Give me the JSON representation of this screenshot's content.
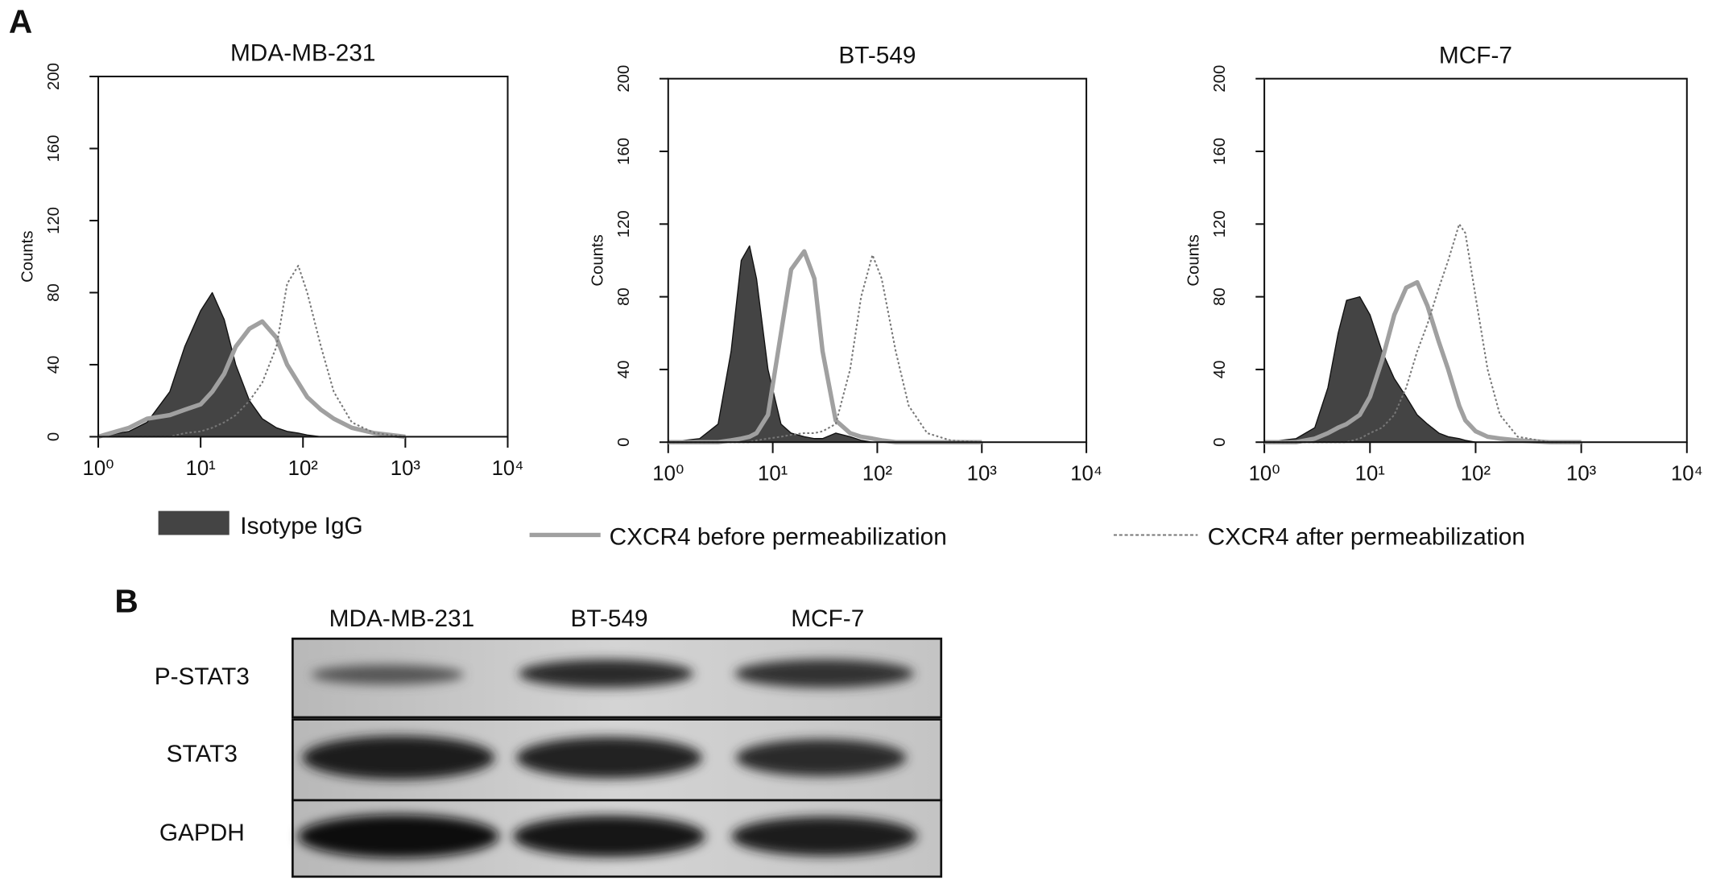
{
  "panels": [
    "A",
    "B"
  ],
  "chart_data": [
    {
      "type": "line",
      "title": "MDA-MB-231",
      "y_label": "Counts",
      "x_log": true,
      "x": [
        1,
        2,
        3,
        5,
        7,
        10,
        13,
        17,
        22,
        30,
        40,
        55,
        70,
        90,
        110,
        150,
        200,
        300,
        500,
        1000
      ],
      "xlim": [
        1,
        10000
      ],
      "xticks": [
        {
          "value": 1,
          "label": "10⁰"
        },
        {
          "value": 10,
          "label": "10¹"
        },
        {
          "value": 100,
          "label": "10²"
        },
        {
          "value": 1000,
          "label": "10³"
        },
        {
          "value": 10000,
          "label": "10⁴"
        }
      ],
      "ylim": [
        0,
        200
      ],
      "yticks": [
        0,
        40,
        80,
        120,
        160,
        200
      ],
      "series": [
        {
          "color": "#444444",
          "fill": true,
          "values": [
            0,
            3,
            8,
            25,
            50,
            70,
            80,
            65,
            40,
            20,
            10,
            5,
            3,
            2,
            1,
            0,
            0,
            0,
            0,
            0
          ]
        },
        {
          "color": "#a0a0a0",
          "width": 4,
          "values": [
            0,
            5,
            10,
            12,
            15,
            18,
            25,
            35,
            50,
            60,
            64,
            55,
            40,
            30,
            22,
            15,
            10,
            5,
            2,
            0
          ]
        },
        {
          "color": "#777777",
          "width": 1.5,
          "dash": "2 2",
          "values": [
            0,
            0,
            0,
            0,
            2,
            3,
            5,
            8,
            12,
            20,
            30,
            50,
            85,
            95,
            80,
            50,
            25,
            8,
            2,
            0
          ]
        }
      ]
    },
    {
      "type": "line",
      "title": "BT-549",
      "y_label": "Counts",
      "x_log": true,
      "x": [
        1,
        2,
        3,
        4,
        5,
        6,
        7,
        9,
        12,
        15,
        20,
        25,
        30,
        40,
        55,
        70,
        90,
        110,
        150,
        200,
        300,
        500,
        1000
      ],
      "xlim": [
        1,
        10000
      ],
      "xticks": [
        {
          "value": 1,
          "label": "10⁰"
        },
        {
          "value": 10,
          "label": "10¹"
        },
        {
          "value": 100,
          "label": "10²"
        },
        {
          "value": 1000,
          "label": "10³"
        },
        {
          "value": 10000,
          "label": "10⁴"
        }
      ],
      "ylim": [
        0,
        200
      ],
      "yticks": [
        0,
        40,
        80,
        120,
        160,
        200
      ],
      "series": [
        {
          "color": "#444444",
          "fill": true,
          "values": [
            0,
            2,
            10,
            50,
            100,
            108,
            90,
            40,
            10,
            5,
            3,
            2,
            2,
            5,
            3,
            1,
            0,
            0,
            0,
            0,
            0,
            0,
            0
          ]
        },
        {
          "color": "#a0a0a0",
          "width": 4,
          "values": [
            0,
            0,
            0,
            1,
            2,
            3,
            5,
            15,
            60,
            95,
            105,
            90,
            50,
            12,
            5,
            3,
            2,
            1,
            0,
            0,
            0,
            0,
            0
          ]
        },
        {
          "color": "#777777",
          "width": 1.5,
          "dash": "2 2",
          "values": [
            0,
            0,
            0,
            0,
            0,
            0,
            1,
            2,
            3,
            4,
            5,
            5,
            6,
            10,
            40,
            80,
            103,
            90,
            50,
            20,
            5,
            1,
            0
          ]
        }
      ]
    },
    {
      "type": "line",
      "title": "MCF-7",
      "y_label": "Counts",
      "x_log": true,
      "x": [
        1,
        2,
        3,
        4,
        5,
        6,
        8,
        10,
        13,
        17,
        22,
        28,
        35,
        45,
        55,
        70,
        80,
        100,
        130,
        170,
        250,
        500,
        1000
      ],
      "xlim": [
        1,
        10000
      ],
      "xticks": [
        {
          "value": 1,
          "label": "10⁰"
        },
        {
          "value": 10,
          "label": "10¹"
        },
        {
          "value": 100,
          "label": "10²"
        },
        {
          "value": 1000,
          "label": "10³"
        },
        {
          "value": 10000,
          "label": "10⁴"
        }
      ],
      "ylim": [
        0,
        200
      ],
      "yticks": [
        0,
        40,
        80,
        120,
        160,
        200
      ],
      "series": [
        {
          "color": "#444444",
          "fill": true,
          "values": [
            0,
            2,
            8,
            30,
            60,
            78,
            80,
            70,
            50,
            35,
            25,
            15,
            10,
            5,
            3,
            2,
            1,
            0,
            0,
            0,
            0,
            0,
            0
          ]
        },
        {
          "color": "#a0a0a0",
          "width": 4,
          "values": [
            0,
            0,
            2,
            5,
            8,
            10,
            15,
            25,
            45,
            70,
            85,
            88,
            75,
            55,
            40,
            20,
            12,
            6,
            3,
            2,
            1,
            0,
            0
          ]
        },
        {
          "color": "#777777",
          "width": 1.5,
          "dash": "2 2",
          "values": [
            0,
            0,
            0,
            0,
            0,
            0,
            2,
            5,
            8,
            15,
            30,
            50,
            65,
            85,
            100,
            120,
            115,
            80,
            40,
            15,
            3,
            0,
            0
          ]
        }
      ]
    }
  ],
  "legend": [
    {
      "name": "Isotype IgG"
    },
    {
      "name": "CXCR4 before permeabilization"
    },
    {
      "name": "CXCR4 after permeabilization"
    }
  ],
  "western_blot": {
    "columns": [
      "MDA-MB-231",
      "BT-549",
      "MCF-7"
    ],
    "rows": [
      "P-STAT3",
      "STAT3",
      "GAPDH"
    ]
  }
}
